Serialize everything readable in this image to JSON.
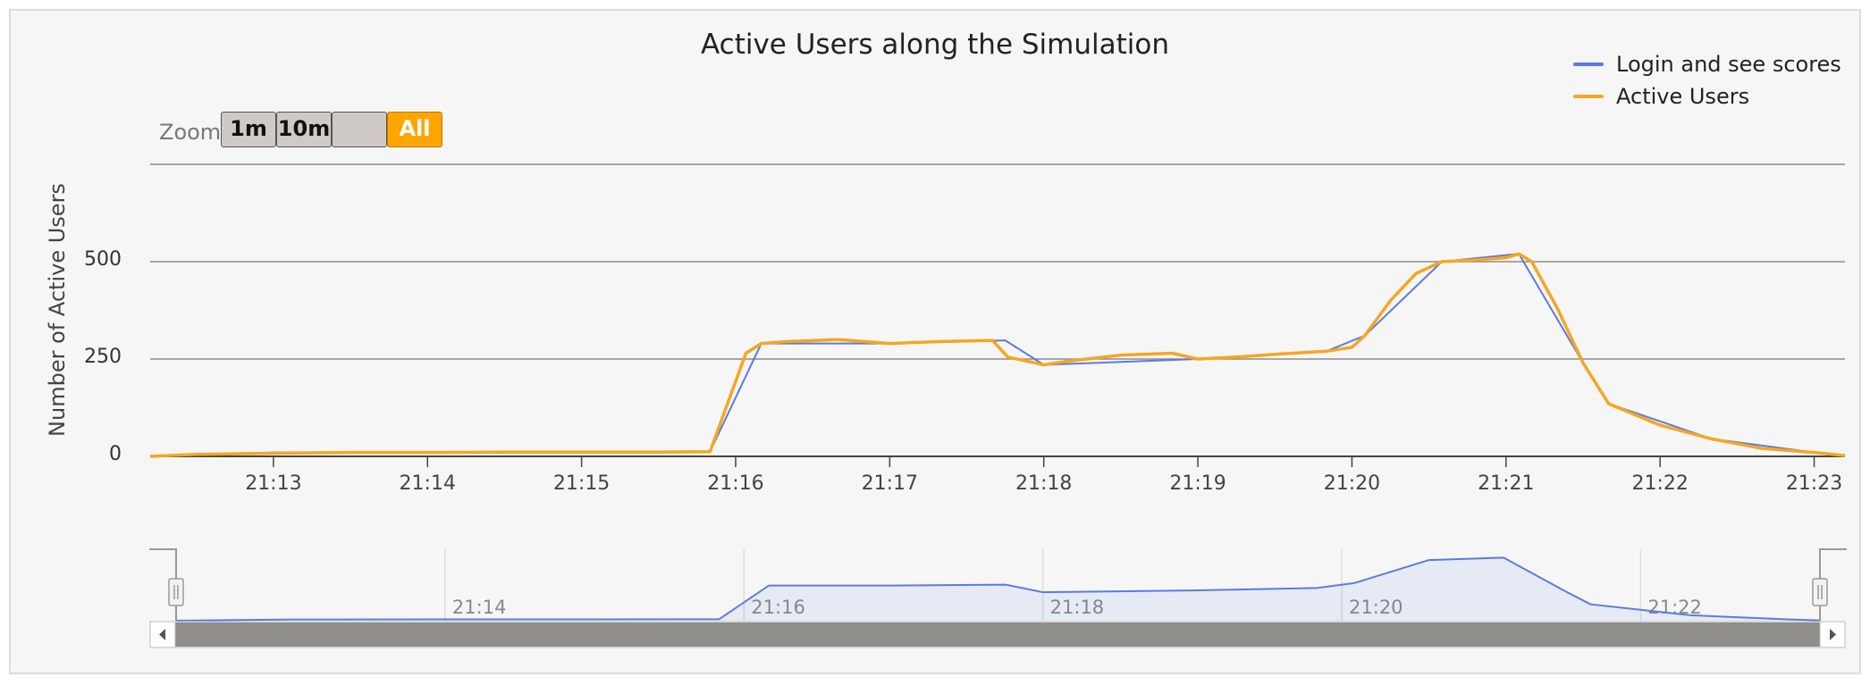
{
  "title": "Active Users along the Simulation",
  "zoom": {
    "label": "Zoom",
    "buttons": [
      {
        "label": "1m",
        "active": false
      },
      {
        "label": "10m",
        "active": false
      },
      {
        "label": "",
        "active": false
      },
      {
        "label": "All",
        "active": true
      }
    ]
  },
  "legend": [
    {
      "name": "Login and see scores",
      "color": "#5b7be0"
    },
    {
      "name": "Active Users",
      "color": "#f5a623"
    }
  ],
  "chart_data": {
    "type": "line",
    "title": "Active Users along the Simulation",
    "ylabel": "Number of Active Users",
    "xlabel": "",
    "x_unit": "time (HH:MM)",
    "ylim": [
      0,
      750
    ],
    "yticks": [
      0,
      250,
      500
    ],
    "xlim": [
      "21:12:12",
      "21:23:12"
    ],
    "xticks": [
      "21:13",
      "21:14",
      "21:15",
      "21:16",
      "21:17",
      "21:18",
      "21:19",
      "21:20",
      "21:21",
      "21:22",
      "21:23"
    ],
    "grid": true,
    "legend_position": "top-right",
    "series": [
      {
        "name": "Active Users",
        "color": "#f5a623",
        "points": [
          [
            "21:12:12",
            0
          ],
          [
            "21:12:30",
            5
          ],
          [
            "21:13:00",
            8
          ],
          [
            "21:13:30",
            10
          ],
          [
            "21:14:00",
            10
          ],
          [
            "21:14:30",
            11
          ],
          [
            "21:15:00",
            11
          ],
          [
            "21:15:30",
            11
          ],
          [
            "21:15:50",
            12
          ],
          [
            "21:16:04",
            265
          ],
          [
            "21:16:10",
            290
          ],
          [
            "21:16:20",
            295
          ],
          [
            "21:16:40",
            300
          ],
          [
            "21:17:00",
            290
          ],
          [
            "21:17:20",
            295
          ],
          [
            "21:17:40",
            298
          ],
          [
            "21:17:46",
            255
          ],
          [
            "21:18:00",
            235
          ],
          [
            "21:18:10",
            245
          ],
          [
            "21:18:30",
            260
          ],
          [
            "21:18:50",
            265
          ],
          [
            "21:19:00",
            250
          ],
          [
            "21:19:15",
            255
          ],
          [
            "21:19:30",
            262
          ],
          [
            "21:19:50",
            270
          ],
          [
            "21:20:00",
            280
          ],
          [
            "21:20:05",
            310
          ],
          [
            "21:20:15",
            400
          ],
          [
            "21:20:25",
            470
          ],
          [
            "21:20:35",
            500
          ],
          [
            "21:20:50",
            505
          ],
          [
            "21:21:00",
            510
          ],
          [
            "21:21:05",
            520
          ],
          [
            "21:21:10",
            500
          ],
          [
            "21:21:20",
            380
          ],
          [
            "21:21:30",
            240
          ],
          [
            "21:21:40",
            135
          ],
          [
            "21:22:00",
            80
          ],
          [
            "21:22:20",
            45
          ],
          [
            "21:22:40",
            20
          ],
          [
            "21:23:00",
            10
          ],
          [
            "21:23:12",
            2
          ]
        ]
      },
      {
        "name": "Login and see scores",
        "color": "#5b7be0",
        "points": [
          [
            "21:12:12",
            0
          ],
          [
            "21:13:00",
            10
          ],
          [
            "21:14:00",
            11
          ],
          [
            "21:15:00",
            11
          ],
          [
            "21:15:50",
            12
          ],
          [
            "21:16:10",
            290
          ],
          [
            "21:17:00",
            290
          ],
          [
            "21:17:45",
            298
          ],
          [
            "21:18:00",
            235
          ],
          [
            "21:19:00",
            250
          ],
          [
            "21:19:50",
            270
          ],
          [
            "21:20:05",
            310
          ],
          [
            "21:20:35",
            500
          ],
          [
            "21:21:05",
            520
          ],
          [
            "21:21:30",
            240
          ],
          [
            "21:21:40",
            135
          ],
          [
            "21:22:20",
            45
          ],
          [
            "21:23:00",
            10
          ],
          [
            "21:23:12",
            2
          ]
        ]
      }
    ],
    "navigator": {
      "series": "Login and see scores",
      "xticks": [
        "21:14",
        "21:16",
        "21:18",
        "21:20",
        "21:22"
      ]
    }
  }
}
